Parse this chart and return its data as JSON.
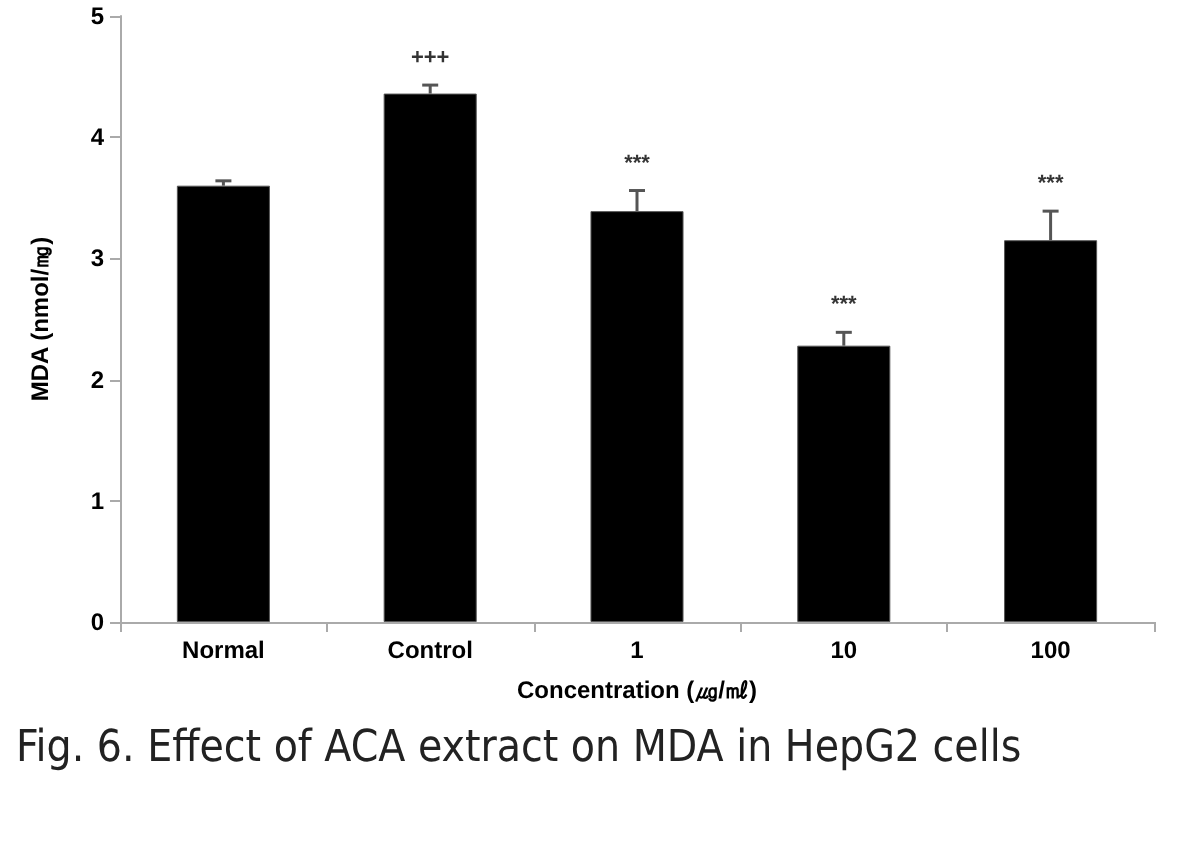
{
  "chart_data": {
    "type": "bar",
    "categories": [
      "Normal",
      "Control",
      "1",
      "10",
      "100"
    ],
    "values": [
      3.6,
      4.36,
      3.39,
      2.28,
      3.15
    ],
    "errors": [
      [
        3.6,
        3.64
      ],
      [
        4.36,
        4.43
      ],
      [
        3.39,
        3.56
      ],
      [
        2.28,
        2.39
      ],
      [
        3.15,
        3.39
      ]
    ],
    "color": "#000000",
    "xlabel": "Concentration (㎍/㎖)",
    "ylabel": "MDA (nmol/㎎)",
    "ylim": [
      0,
      5
    ],
    "yticks": [
      0,
      1,
      2,
      3,
      4,
      5
    ],
    "grid": false,
    "annotations": [
      {
        "text": "+++",
        "x": "Control",
        "y": 4.43
      },
      {
        "text": "***",
        "x": "1",
        "y": 3.56
      },
      {
        "text": "***",
        "x": "10",
        "y": 2.39
      },
      {
        "text": "***",
        "x": "100",
        "y": 3.39
      },
      "Fig. 6. Effect of ACA extract on MDA in HepG2 cells"
    ]
  }
}
